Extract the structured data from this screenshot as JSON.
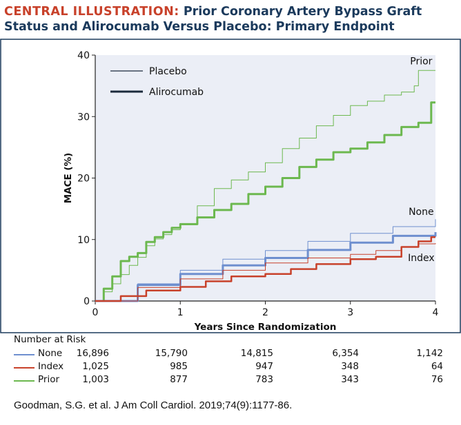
{
  "title": {
    "label": "CENTRAL ILLUSTRATION:",
    "text": "Prior Coronary Artery Bypass Graft Status and Alirocumab Versus Placebo: Primary Endpoint"
  },
  "colors": {
    "none": "#6e8fcf",
    "index": "#c8412a",
    "prior": "#6cb84f",
    "legend": "#1b2a3c",
    "plot_bg": "#ebeef6",
    "title_label": "#c8412a",
    "title_text": "#1b3a5c"
  },
  "chart_data": {
    "type": "line",
    "xlabel": "Years Since Randomization",
    "ylabel": "MACE (%)",
    "xlim": [
      0,
      4
    ],
    "ylim": [
      0,
      40
    ],
    "xticks": [
      0,
      1,
      2,
      3,
      4
    ],
    "yticks": [
      0,
      10,
      20,
      30,
      40
    ],
    "grid": false,
    "legend": {
      "placement": "top-left",
      "entries": [
        {
          "label": "Placebo",
          "style": "thin"
        },
        {
          "label": "Alirocumab",
          "style": "thick"
        }
      ]
    },
    "annotations": [
      {
        "text": "Prior",
        "x": 3.8,
        "y": 38.5
      },
      {
        "text": "None",
        "x": 3.8,
        "y": 14
      },
      {
        "text": "Index",
        "x": 3.8,
        "y": 6.5
      }
    ],
    "series": [
      {
        "group": "Prior",
        "arm": "Placebo",
        "color": "#6cb84f",
        "width": 1,
        "x": [
          0,
          0.1,
          0.2,
          0.3,
          0.4,
          0.5,
          0.6,
          0.7,
          0.8,
          0.9,
          1.0,
          1.2,
          1.4,
          1.6,
          1.8,
          2.0,
          2.2,
          2.4,
          2.6,
          2.8,
          3.0,
          3.2,
          3.4,
          3.6,
          3.75,
          3.8,
          4.0
        ],
        "y": [
          0,
          1.5,
          2.8,
          4.3,
          5.8,
          7.1,
          9.0,
          10.1,
          10.8,
          11.6,
          12.4,
          15.5,
          18.3,
          19.7,
          21.0,
          22.5,
          24.8,
          26.5,
          28.5,
          30.2,
          31.8,
          32.5,
          33.5,
          34.0,
          35.0,
          37.5,
          37.5
        ]
      },
      {
        "group": "Prior",
        "arm": "Alirocumab",
        "color": "#6cb84f",
        "width": 3,
        "x": [
          0,
          0.1,
          0.2,
          0.3,
          0.4,
          0.5,
          0.6,
          0.7,
          0.8,
          0.9,
          1.0,
          1.2,
          1.4,
          1.6,
          1.8,
          2.0,
          2.2,
          2.4,
          2.6,
          2.8,
          3.0,
          3.2,
          3.4,
          3.6,
          3.8,
          3.95,
          4.0
        ],
        "y": [
          0,
          2.0,
          4.0,
          6.5,
          7.2,
          7.8,
          9.6,
          10.4,
          11.2,
          11.9,
          12.5,
          13.6,
          14.8,
          15.8,
          17.4,
          18.6,
          20.0,
          21.8,
          23.0,
          24.2,
          24.8,
          25.8,
          27.0,
          28.3,
          29.0,
          32.3,
          32.3
        ]
      },
      {
        "group": "None",
        "arm": "Placebo",
        "color": "#6e8fcf",
        "width": 1,
        "x": [
          0,
          0.5,
          1.0,
          1.5,
          2.0,
          2.5,
          3.0,
          3.5,
          4.0
        ],
        "y": [
          0,
          2.8,
          5.0,
          6.8,
          8.2,
          9.7,
          11.0,
          12.1,
          13.3
        ]
      },
      {
        "group": "None",
        "arm": "Alirocumab",
        "color": "#6e8fcf",
        "width": 3,
        "x": [
          0,
          0.5,
          1.0,
          1.5,
          2.0,
          2.5,
          3.0,
          3.5,
          4.0
        ],
        "y": [
          0,
          2.6,
          4.4,
          5.8,
          7.0,
          8.3,
          9.5,
          10.6,
          11.2
        ]
      },
      {
        "group": "Index",
        "arm": "Placebo",
        "color": "#c8412a",
        "width": 1,
        "x": [
          0,
          0.5,
          1.0,
          1.5,
          2.0,
          2.5,
          3.0,
          3.3,
          3.6,
          3.8,
          4.0
        ],
        "y": [
          0,
          2.2,
          3.6,
          5.0,
          6.2,
          7.0,
          7.6,
          8.2,
          8.8,
          9.3,
          9.4
        ]
      },
      {
        "group": "Index",
        "arm": "Alirocumab",
        "color": "#c8412a",
        "width": 2.5,
        "x": [
          0,
          0.3,
          0.6,
          1.0,
          1.3,
          1.6,
          2.0,
          2.3,
          2.6,
          3.0,
          3.3,
          3.6,
          3.8,
          3.95,
          4.0
        ],
        "y": [
          0,
          0.8,
          1.7,
          2.3,
          3.2,
          4.0,
          4.4,
          5.2,
          6.0,
          6.8,
          7.2,
          8.8,
          9.7,
          10.4,
          10.4
        ]
      }
    ]
  },
  "risk_table": {
    "heading": "Number at Risk",
    "rows": [
      {
        "name": "None",
        "color": "#6e8fcf",
        "values": [
          "16,896",
          "15,790",
          "14,815",
          "6,354",
          "1,142"
        ]
      },
      {
        "name": "Index",
        "color": "#c8412a",
        "values": [
          "1,025",
          "985",
          "947",
          "348",
          "64"
        ]
      },
      {
        "name": "Prior",
        "color": "#6cb84f",
        "values": [
          "1,003",
          "877",
          "783",
          "343",
          "76"
        ]
      }
    ]
  },
  "citation": "Goodman, S.G. et al. J Am Coll Cardiol. 2019;74(9):1177-86."
}
